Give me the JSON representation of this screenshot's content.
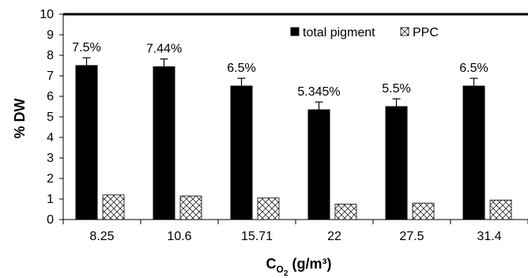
{
  "chart_data": {
    "type": "bar",
    "categories": [
      "8.25",
      "10.6",
      "15.71",
      "22",
      "27.5",
      "31.4"
    ],
    "series": [
      {
        "name": "total pigment",
        "values": [
          7.5,
          7.44,
          6.5,
          5.345,
          5.5,
          6.5
        ],
        "errors": [
          0.38,
          0.38,
          0.38,
          0.38,
          0.38,
          0.38
        ],
        "color": "#000000",
        "pattern": "solid"
      },
      {
        "name": "PPC",
        "values": [
          1.2,
          1.15,
          1.05,
          0.75,
          0.8,
          0.95
        ],
        "color": "#ffffff",
        "pattern": "crosshatch"
      }
    ],
    "data_labels": [
      "7.5%",
      "7.44%",
      "6.5%",
      "5.345%",
      "5.5%",
      "6.5%"
    ],
    "ylim": [
      0,
      10
    ],
    "yticks": [
      "0",
      "1",
      "2",
      "3",
      "4",
      "5",
      "6",
      "7",
      "8",
      "9",
      "10"
    ],
    "ylabel": "% DW",
    "xlabel": {
      "base": "C",
      "sub": "O",
      "sub2": "2",
      "rest": " (g/m³)"
    },
    "legend": {
      "position": "top-right"
    },
    "grid": false
  }
}
